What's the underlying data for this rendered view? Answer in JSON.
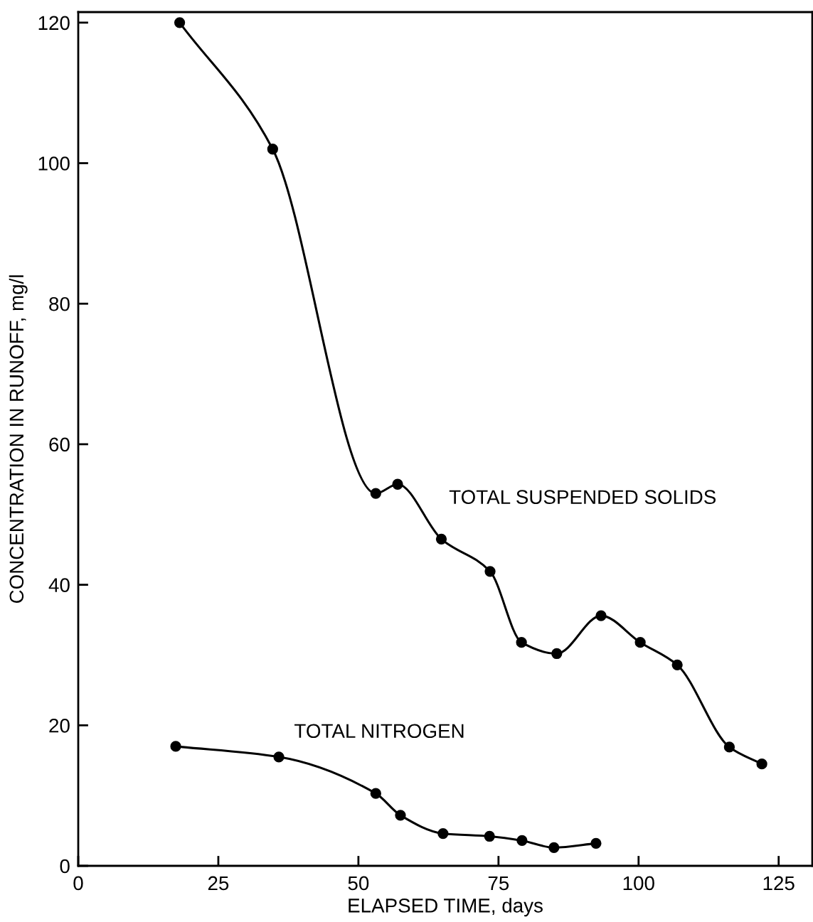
{
  "chart_data": {
    "type": "line",
    "xlabel": "ELAPSED TIME, days",
    "ylabel": "CONCENTRATION IN RUNOFF, mg/l",
    "xlim": [
      0,
      131
    ],
    "ylim": [
      0,
      121.5
    ],
    "xticks": [
      0,
      25,
      50,
      75,
      100,
      125
    ],
    "yticks": [
      0,
      20,
      40,
      60,
      80,
      100,
      120
    ],
    "grid": false,
    "legend": false,
    "series": [
      {
        "color": "#000000",
        "marker": "circle",
        "x": [
          18.1,
          34.7,
          53.1,
          57.0,
          64.8,
          73.5,
          79.1,
          85.4,
          93.3,
          100.3,
          106.9,
          116.2,
          122.0
        ],
        "values": [
          120,
          102,
          53,
          54.3,
          46.5,
          41.9,
          31.8,
          30.2,
          35.6,
          31.8,
          28.6,
          16.9,
          14.5
        ]
      },
      {
        "color": "#000000",
        "marker": "circle",
        "x": [
          17.4,
          35.8,
          53.1,
          57.5,
          65.1,
          73.4,
          79.2,
          84.9,
          92.4
        ],
        "values": [
          17.0,
          15.5,
          10.3,
          7.2,
          4.6,
          4.2,
          3.6,
          2.6,
          3.2
        ]
      }
    ],
    "annotations": [
      "TOTAL SUSPENDED SOLIDS",
      "TOTAL NITROGEN"
    ]
  }
}
